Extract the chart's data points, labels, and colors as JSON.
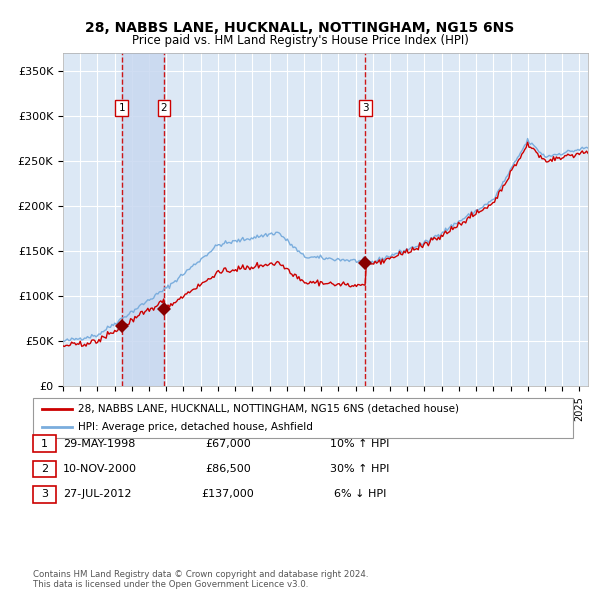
{
  "title_line1": "28, NABBS LANE, HUCKNALL, NOTTINGHAM, NG15 6NS",
  "title_line2": "Price paid vs. HM Land Registry's House Price Index (HPI)",
  "ylim": [
    0,
    370000
  ],
  "yticks": [
    0,
    50000,
    100000,
    150000,
    200000,
    250000,
    300000,
    350000
  ],
  "ytick_labels": [
    "£0",
    "£50K",
    "£100K",
    "£150K",
    "£200K",
    "£250K",
    "£300K",
    "£350K"
  ],
  "background_color": "#ffffff",
  "plot_bg_color": "#dce8f5",
  "grid_color": "#ffffff",
  "purchases": [
    {
      "date_num": 1998.41,
      "price": 67000,
      "label": "1"
    },
    {
      "date_num": 2000.86,
      "price": 86500,
      "label": "2"
    },
    {
      "date_num": 2012.57,
      "price": 137000,
      "label": "3"
    }
  ],
  "vline_color": "#cc0000",
  "vline_style": "--",
  "shade_color": "#c8d8f0",
  "property_line_color": "#cc0000",
  "hpi_line_color": "#7aaddd",
  "marker_color": "#880000",
  "legend_label_property": "28, NABBS LANE, HUCKNALL, NOTTINGHAM, NG15 6NS (detached house)",
  "legend_label_hpi": "HPI: Average price, detached house, Ashfield",
  "table_entries": [
    {
      "num": "1",
      "date": "29-MAY-1998",
      "price": "£67,000",
      "hpi": "10% ↑ HPI"
    },
    {
      "num": "2",
      "date": "10-NOV-2000",
      "price": "£86,500",
      "hpi": "30% ↑ HPI"
    },
    {
      "num": "3",
      "date": "27-JUL-2012",
      "price": "£137,000",
      "hpi": "6% ↓ HPI"
    }
  ],
  "footnote_line1": "Contains HM Land Registry data © Crown copyright and database right 2024.",
  "footnote_line2": "This data is licensed under the Open Government Licence v3.0.",
  "xstart": 1995.0,
  "xend": 2025.5
}
